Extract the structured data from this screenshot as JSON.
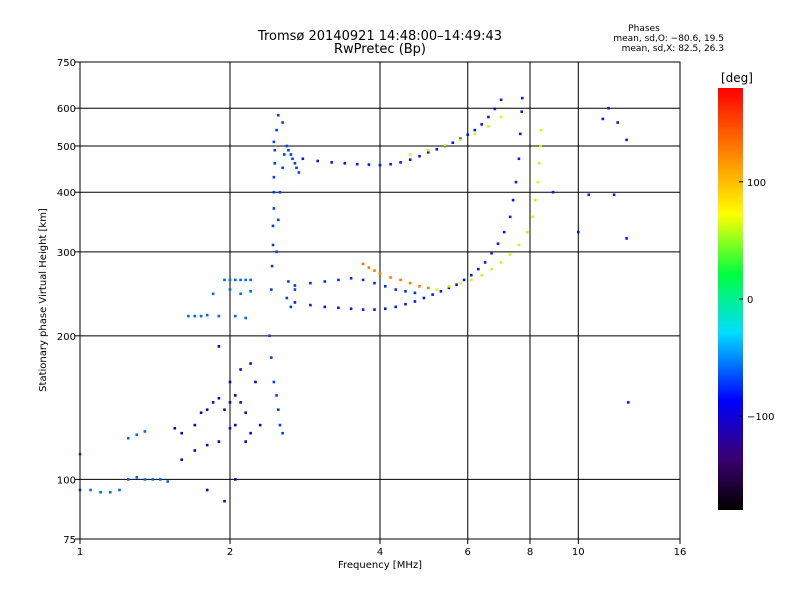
{
  "chart_data": {
    "type": "scatter",
    "title": "Tromsø 20140921 14:48:00–14:49:43",
    "subtitle": "RwPretec (Bp)",
    "xlabel": "Frequency [MHz]",
    "ylabel": "Stationary phase Virtual Height [km]",
    "xscale": "log",
    "yscale": "log",
    "xlim": [
      1,
      16
    ],
    "ylim": [
      75,
      750
    ],
    "x_ticks": [
      "1",
      "2",
      "4",
      "6",
      "8",
      "10",
      "16"
    ],
    "x_tick_values": [
      1,
      2,
      4,
      6,
      8,
      10,
      16
    ],
    "y_ticks": [
      "750",
      "600",
      "500",
      "400",
      "300",
      "200",
      "100",
      "75"
    ],
    "y_tick_values": [
      750,
      600,
      500,
      400,
      300,
      200,
      100,
      75
    ],
    "grid": true,
    "phases": {
      "header": "Phases",
      "line_o": "mean, sd,O: −80.6, 19.5",
      "line_x": "mean, sd,X: 82.5, 26.3"
    },
    "colorbar": {
      "label": "[deg]",
      "range": [
        -180,
        180
      ],
      "tick_labels": [
        "100",
        "0",
        "−100"
      ],
      "tick_values": [
        100,
        0,
        -100
      ]
    },
    "series": [
      {
        "trace": "low-height scatter",
        "phase_deg": -60,
        "points": [
          [
            1.0,
            95
          ],
          [
            1.05,
            95
          ],
          [
            1.1,
            94
          ],
          [
            1.15,
            94
          ],
          [
            1.2,
            95
          ],
          [
            1.25,
            100
          ],
          [
            1.3,
            101
          ],
          [
            1.35,
            100
          ],
          [
            1.4,
            100
          ],
          [
            1.45,
            100
          ],
          [
            1.5,
            99
          ],
          [
            1.25,
            122
          ],
          [
            1.3,
            124
          ],
          [
            1.35,
            126
          ],
          [
            1.0,
            113
          ]
        ]
      },
      {
        "trace": "E / F1 rise",
        "phase_deg": -100,
        "points": [
          [
            1.55,
            128
          ],
          [
            1.6,
            125
          ],
          [
            1.7,
            130
          ],
          [
            1.75,
            138
          ],
          [
            1.8,
            140
          ],
          [
            1.85,
            145
          ],
          [
            1.9,
            148
          ],
          [
            1.95,
            140
          ],
          [
            2.0,
            145
          ],
          [
            2.05,
            150
          ],
          [
            2.1,
            145
          ],
          [
            2.15,
            138
          ],
          [
            1.9,
            120
          ],
          [
            2.0,
            128
          ],
          [
            2.05,
            130
          ],
          [
            2.15,
            120
          ],
          [
            2.2,
            125
          ],
          [
            2.3,
            130
          ],
          [
            1.9,
            190
          ],
          [
            2.0,
            160
          ],
          [
            2.1,
            170
          ],
          [
            2.2,
            175
          ],
          [
            2.25,
            160
          ],
          [
            1.6,
            110
          ],
          [
            1.7,
            115
          ],
          [
            1.8,
            118
          ],
          [
            1.95,
            90
          ],
          [
            2.05,
            100
          ],
          [
            1.8,
            95
          ]
        ]
      },
      {
        "trace": "F1 ledge",
        "phase_deg": -60,
        "points": [
          [
            1.65,
            220
          ],
          [
            1.7,
            220
          ],
          [
            1.75,
            220
          ],
          [
            1.8,
            221
          ],
          [
            1.9,
            220
          ],
          [
            2.05,
            220
          ],
          [
            2.15,
            218
          ],
          [
            1.95,
            262
          ],
          [
            2.0,
            262
          ],
          [
            2.05,
            262
          ],
          [
            2.1,
            262
          ],
          [
            2.15,
            262
          ],
          [
            2.2,
            262
          ],
          [
            1.85,
            245
          ],
          [
            2.0,
            250
          ],
          [
            2.1,
            245
          ],
          [
            2.2,
            248
          ]
        ]
      },
      {
        "trace": "F1 cusp column",
        "phase_deg": -70,
        "points": [
          [
            2.42,
            250
          ],
          [
            2.43,
            280
          ],
          [
            2.44,
            310
          ],
          [
            2.44,
            340
          ],
          [
            2.45,
            370
          ],
          [
            2.45,
            400
          ],
          [
            2.45,
            430
          ],
          [
            2.46,
            460
          ],
          [
            2.46,
            490
          ],
          [
            2.45,
            510
          ],
          [
            2.48,
            300
          ],
          [
            2.5,
            350
          ],
          [
            2.52,
            400
          ],
          [
            2.55,
            450
          ],
          [
            2.57,
            480
          ],
          [
            2.6,
            500
          ],
          [
            2.62,
            490
          ],
          [
            2.65,
            480
          ],
          [
            2.67,
            470
          ],
          [
            2.7,
            460
          ],
          [
            2.72,
            450
          ],
          [
            2.75,
            440
          ],
          [
            2.4,
            200
          ],
          [
            2.42,
            180
          ],
          [
            2.45,
            160
          ],
          [
            2.48,
            150
          ],
          [
            2.5,
            140
          ],
          [
            2.52,
            130
          ],
          [
            2.55,
            125
          ],
          [
            2.6,
            240
          ],
          [
            2.62,
            260
          ],
          [
            2.65,
            230
          ],
          [
            2.7,
            250
          ],
          [
            2.55,
            560
          ],
          [
            2.5,
            580
          ],
          [
            2.48,
            540
          ]
        ]
      },
      {
        "trace": "upper F2 O-trace",
        "phase_deg": -80,
        "points": [
          [
            2.8,
            470
          ],
          [
            3.0,
            465
          ],
          [
            3.2,
            462
          ],
          [
            3.4,
            460
          ],
          [
            3.6,
            458
          ],
          [
            3.8,
            457
          ],
          [
            4.0,
            456
          ],
          [
            4.2,
            458
          ],
          [
            4.4,
            462
          ],
          [
            4.6,
            468
          ],
          [
            4.8,
            476
          ],
          [
            5.0,
            485
          ],
          [
            5.2,
            492
          ],
          [
            5.4,
            500
          ],
          [
            5.6,
            508
          ],
          [
            5.8,
            518
          ],
          [
            6.0,
            528
          ],
          [
            6.2,
            540
          ],
          [
            6.4,
            555
          ],
          [
            6.6,
            575
          ],
          [
            6.8,
            598
          ],
          [
            7.0,
            625
          ]
        ]
      },
      {
        "trace": "upper F2 X-trace",
        "phase_deg": 60,
        "points": [
          [
            4.6,
            480
          ],
          [
            5.0,
            490
          ],
          [
            5.4,
            502
          ],
          [
            5.8,
            515
          ],
          [
            6.2,
            530
          ],
          [
            6.6,
            550
          ],
          [
            7.0,
            575
          ]
        ]
      },
      {
        "trace": "lower F2 O-trace",
        "phase_deg": -80,
        "points": [
          [
            2.7,
            235
          ],
          [
            2.9,
            232
          ],
          [
            3.1,
            230
          ],
          [
            3.3,
            229
          ],
          [
            3.5,
            228
          ],
          [
            3.7,
            227
          ],
          [
            3.9,
            227
          ],
          [
            4.1,
            228
          ],
          [
            4.3,
            230
          ],
          [
            4.5,
            233
          ],
          [
            4.7,
            236
          ],
          [
            4.9,
            240
          ],
          [
            5.1,
            244
          ],
          [
            5.3,
            248
          ],
          [
            5.5,
            252
          ],
          [
            5.7,
            256
          ],
          [
            5.9,
            262
          ],
          [
            6.1,
            268
          ],
          [
            6.3,
            276
          ],
          [
            6.5,
            285
          ],
          [
            6.7,
            298
          ],
          [
            6.9,
            312
          ],
          [
            7.1,
            330
          ],
          [
            7.3,
            355
          ],
          [
            7.4,
            385
          ],
          [
            7.5,
            420
          ],
          [
            7.6,
            470
          ],
          [
            7.65,
            530
          ],
          [
            7.7,
            590
          ],
          [
            7.72,
            630
          ]
        ]
      },
      {
        "trace": "F1 O-trace",
        "phase_deg": -75,
        "points": [
          [
            2.7,
            255
          ],
          [
            2.9,
            258
          ],
          [
            3.1,
            260
          ],
          [
            3.3,
            262
          ],
          [
            3.5,
            264
          ],
          [
            3.7,
            262
          ],
          [
            3.9,
            258
          ],
          [
            4.1,
            254
          ],
          [
            4.3,
            250
          ],
          [
            4.5,
            248
          ],
          [
            4.7,
            246
          ]
        ]
      },
      {
        "trace": "F1 X-trace",
        "phase_deg": 130,
        "points": [
          [
            3.7,
            283
          ],
          [
            3.8,
            278
          ],
          [
            3.9,
            274
          ],
          [
            4.0,
            270
          ],
          [
            4.2,
            265
          ],
          [
            4.4,
            262
          ],
          [
            4.6,
            258
          ],
          [
            4.8,
            254
          ],
          [
            5.0,
            252
          ]
        ]
      },
      {
        "trace": "lower F2 X-trace",
        "phase_deg": 60,
        "points": [
          [
            5.2,
            250
          ],
          [
            5.5,
            254
          ],
          [
            5.8,
            258
          ],
          [
            6.1,
            262
          ],
          [
            6.4,
            268
          ],
          [
            6.7,
            276
          ],
          [
            7.0,
            285
          ],
          [
            7.3,
            296
          ],
          [
            7.6,
            310
          ],
          [
            7.9,
            330
          ],
          [
            8.1,
            355
          ],
          [
            8.2,
            385
          ],
          [
            8.3,
            420
          ],
          [
            8.35,
            460
          ],
          [
            8.4,
            500
          ],
          [
            8.42,
            540
          ]
        ]
      },
      {
        "trace": "sporadic",
        "phase_deg": -80,
        "points": [
          [
            11.5,
            600
          ],
          [
            12.0,
            560
          ],
          [
            12.5,
            515
          ],
          [
            12.5,
            320
          ],
          [
            12.6,
            145
          ],
          [
            11.2,
            570
          ],
          [
            10.5,
            395
          ],
          [
            8.9,
            400
          ],
          [
            10.0,
            330
          ],
          [
            11.8,
            395
          ]
        ]
      }
    ]
  }
}
